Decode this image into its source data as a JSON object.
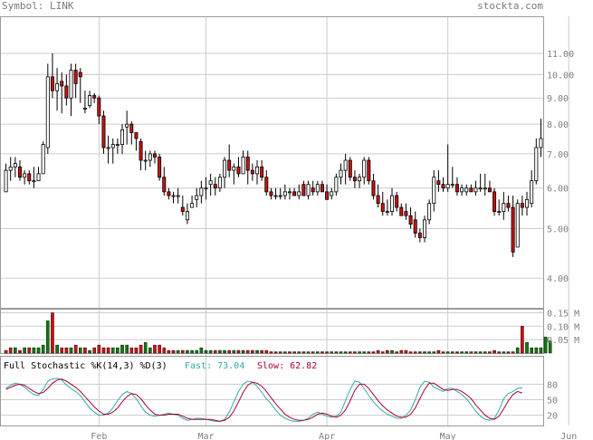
{
  "header": {
    "symbol": "Symbol: LINK",
    "site": "stockta.com"
  },
  "colors": {
    "grid": "#cccccc",
    "frame": "#9a9a9a",
    "up_candle": "#ffffff",
    "down_candle": "#cc1111",
    "wick": "#000000",
    "vol_up": "#117711",
    "vol_down": "#cc1111",
    "fast_line": "#33aaaa",
    "slow_line": "#aa0033",
    "axis_text": "#808080"
  },
  "chart_data": [
    {
      "type": "candlestick",
      "scale": "log",
      "ylim": [
        3.5,
        13.0
      ],
      "y_ticks": [
        4.0,
        5.0,
        6.0,
        7.0,
        8.0,
        9.0,
        10.0,
        11.0
      ],
      "y_tick_labels": [
        "4.00",
        "5.00",
        "6.00",
        "7.00",
        "8.00",
        "9.00",
        "10.00",
        "11.00"
      ],
      "x_month_labels": [
        "Feb",
        "Mar",
        "Apr",
        "May",
        "Jun"
      ],
      "x_month_index": [
        20,
        43,
        69,
        95,
        121
      ],
      "ohlc": [
        [
          5.9,
          6.7,
          5.9,
          6.5
        ],
        [
          6.5,
          6.9,
          6.2,
          6.6
        ],
        [
          6.6,
          6.9,
          6.3,
          6.7
        ],
        [
          6.6,
          6.8,
          6.2,
          6.3
        ],
        [
          6.3,
          6.5,
          6.1,
          6.4
        ],
        [
          6.4,
          6.5,
          6.1,
          6.2
        ],
        [
          6.2,
          6.6,
          6.0,
          6.2
        ],
        [
          6.2,
          6.6,
          6.2,
          6.4
        ],
        [
          6.4,
          7.4,
          6.4,
          7.3
        ],
        [
          7.2,
          10.5,
          7.0,
          9.9
        ],
        [
          9.9,
          11.0,
          9.0,
          9.3
        ],
        [
          9.3,
          10.3,
          8.5,
          9.6
        ],
        [
          9.7,
          10.1,
          8.4,
          9.5
        ],
        [
          9.5,
          10.0,
          8.7,
          9.0
        ],
        [
          9.0,
          10.5,
          8.3,
          10.2
        ],
        [
          10.2,
          10.5,
          9.0,
          9.6
        ],
        [
          10.1,
          10.3,
          8.8,
          9.9
        ],
        [
          8.6,
          9.3,
          8.4,
          8.6
        ],
        [
          8.7,
          9.3,
          8.6,
          9.1
        ],
        [
          9.1,
          9.2,
          8.8,
          9.0
        ],
        [
          9.0,
          9.1,
          8.0,
          8.3
        ],
        [
          8.3,
          8.5,
          7.0,
          7.2
        ],
        [
          7.2,
          7.6,
          6.7,
          7.2
        ],
        [
          7.2,
          7.5,
          6.7,
          7.3
        ],
        [
          7.3,
          7.5,
          7.0,
          7.3
        ],
        [
          7.3,
          8.0,
          7.0,
          7.8
        ],
        [
          7.9,
          8.5,
          7.3,
          8.0
        ],
        [
          8.0,
          8.1,
          7.3,
          7.7
        ],
        [
          7.7,
          7.7,
          7.1,
          7.5
        ],
        [
          7.4,
          7.5,
          6.5,
          6.8
        ],
        [
          6.8,
          7.1,
          6.5,
          6.8
        ],
        [
          6.8,
          7.1,
          6.6,
          7.0
        ],
        [
          7.0,
          7.1,
          6.7,
          6.9
        ],
        [
          6.9,
          7.0,
          6.2,
          6.3
        ],
        [
          6.3,
          6.6,
          5.8,
          5.9
        ],
        [
          5.9,
          6.0,
          5.7,
          5.8
        ],
        [
          5.8,
          5.9,
          5.6,
          5.8
        ],
        [
          5.8,
          6.0,
          5.6,
          5.8
        ],
        [
          5.5,
          5.8,
          5.3,
          5.4
        ],
        [
          5.2,
          5.6,
          5.1,
          5.4
        ],
        [
          5.5,
          5.8,
          5.5,
          5.6
        ],
        [
          5.7,
          6.0,
          5.5,
          5.8
        ],
        [
          5.8,
          6.2,
          5.6,
          6.0
        ],
        [
          6.0,
          6.3,
          5.7,
          6.0
        ],
        [
          6.1,
          6.4,
          5.8,
          6.2
        ],
        [
          6.1,
          6.3,
          5.8,
          6.0
        ],
        [
          6.0,
          6.4,
          5.9,
          6.3
        ],
        [
          6.3,
          6.9,
          6.0,
          6.8
        ],
        [
          6.8,
          7.3,
          6.3,
          6.5
        ],
        [
          6.5,
          6.7,
          6.1,
          6.6
        ],
        [
          6.6,
          6.9,
          6.3,
          6.4
        ],
        [
          6.4,
          7.1,
          6.4,
          6.9
        ],
        [
          6.9,
          7.1,
          6.1,
          6.5
        ],
        [
          6.5,
          6.7,
          6.2,
          6.4
        ],
        [
          6.4,
          6.8,
          6.1,
          6.6
        ],
        [
          6.6,
          6.8,
          6.2,
          6.3
        ],
        [
          6.3,
          6.5,
          5.8,
          5.9
        ],
        [
          5.9,
          6.0,
          5.7,
          5.8
        ],
        [
          5.8,
          6.0,
          5.7,
          5.8
        ],
        [
          5.8,
          6.0,
          5.7,
          5.8
        ],
        [
          5.8,
          6.1,
          5.7,
          5.9
        ],
        [
          5.9,
          6.0,
          5.7,
          5.9
        ],
        [
          5.9,
          6.0,
          5.8,
          5.8
        ],
        [
          5.8,
          6.1,
          5.7,
          5.9
        ],
        [
          6.1,
          6.2,
          5.8,
          5.8
        ],
        [
          5.8,
          6.2,
          5.7,
          6.1
        ],
        [
          6.0,
          6.2,
          5.8,
          5.9
        ],
        [
          5.9,
          6.2,
          5.8,
          6.1
        ],
        [
          6.1,
          6.2,
          5.9,
          5.9
        ],
        [
          5.9,
          6.1,
          5.7,
          5.7
        ],
        [
          5.8,
          6.0,
          5.7,
          5.9
        ],
        [
          5.9,
          6.4,
          5.8,
          6.3
        ],
        [
          6.3,
          6.7,
          6.1,
          6.5
        ],
        [
          6.5,
          7.0,
          6.1,
          6.8
        ],
        [
          6.8,
          6.9,
          6.2,
          6.3
        ],
        [
          6.3,
          6.5,
          6.0,
          6.2
        ],
        [
          6.2,
          6.4,
          6.0,
          6.3
        ],
        [
          6.3,
          6.9,
          6.1,
          6.8
        ],
        [
          6.8,
          6.9,
          6.1,
          6.2
        ],
        [
          6.2,
          6.4,
          5.7,
          5.8
        ],
        [
          5.8,
          6.1,
          5.5,
          5.6
        ],
        [
          5.6,
          5.9,
          5.3,
          5.4
        ],
        [
          5.4,
          5.7,
          5.3,
          5.4
        ],
        [
          5.4,
          6.0,
          5.3,
          5.8
        ],
        [
          5.8,
          5.9,
          5.4,
          5.5
        ],
        [
          5.5,
          5.6,
          5.3,
          5.3
        ],
        [
          5.4,
          5.6,
          5.2,
          5.3
        ],
        [
          5.3,
          5.5,
          5.0,
          5.1
        ],
        [
          5.2,
          5.4,
          4.8,
          4.9
        ],
        [
          4.9,
          5.0,
          4.7,
          4.8
        ],
        [
          4.8,
          5.3,
          4.7,
          5.2
        ],
        [
          5.2,
          5.7,
          5.1,
          5.6
        ],
        [
          5.6,
          6.5,
          5.4,
          6.3
        ],
        [
          6.2,
          6.5,
          5.9,
          6.1
        ],
        [
          6.1,
          6.3,
          5.9,
          6.0
        ],
        [
          6.0,
          7.3,
          5.9,
          6.1
        ],
        [
          6.1,
          6.6,
          6.0,
          6.1
        ],
        [
          6.1,
          6.3,
          5.8,
          5.9
        ],
        [
          5.9,
          6.1,
          5.8,
          6.0
        ],
        [
          5.9,
          6.1,
          5.8,
          6.0
        ],
        [
          6.0,
          6.1,
          5.9,
          5.9
        ],
        [
          5.9,
          6.2,
          5.8,
          6.0
        ],
        [
          6.0,
          6.4,
          5.9,
          6.0
        ],
        [
          6.0,
          6.4,
          5.8,
          6.0
        ],
        [
          6.0,
          6.2,
          5.9,
          5.9
        ],
        [
          5.9,
          6.0,
          5.3,
          5.4
        ],
        [
          5.4,
          5.7,
          5.3,
          5.4
        ],
        [
          5.4,
          5.9,
          5.2,
          5.6
        ],
        [
          5.6,
          5.8,
          5.4,
          5.5
        ],
        [
          5.5,
          5.8,
          4.4,
          4.5
        ],
        [
          4.6,
          5.7,
          4.6,
          5.6
        ],
        [
          5.6,
          5.8,
          5.3,
          5.5
        ],
        [
          5.5,
          5.9,
          5.3,
          5.7
        ],
        [
          5.6,
          6.5,
          5.5,
          6.2
        ],
        [
          6.2,
          7.5,
          6.1,
          7.2
        ],
        [
          7.2,
          8.2,
          6.9,
          7.5
        ]
      ]
    },
    {
      "type": "bar",
      "title": "Volume",
      "y_ticks": [
        0.05,
        0.1,
        0.15
      ],
      "y_tick_labels": [
        "0.05 M",
        "0.10 M",
        "0.15 M"
      ],
      "ylim": [
        0,
        0.165
      ],
      "values": [
        0.01,
        0.02,
        0.02,
        0.01,
        0.02,
        0.02,
        0.02,
        0.02,
        0.03,
        0.12,
        0.15,
        0.03,
        0.02,
        0.02,
        0.02,
        0.03,
        0.02,
        0.02,
        0.01,
        0.02,
        0.03,
        0.02,
        0.02,
        0.02,
        0.02,
        0.03,
        0.03,
        0.02,
        0.02,
        0.03,
        0.04,
        0.02,
        0.03,
        0.03,
        0.02,
        0.01,
        0.01,
        0.01,
        0.01,
        0.01,
        0.01,
        0.01,
        0.02,
        0.01,
        0.01,
        0.01,
        0.01,
        0.01,
        0.01,
        0.01,
        0.01,
        0.01,
        0.01,
        0.01,
        0.01,
        0.01,
        0.01,
        0.005,
        0.005,
        0.005,
        0.005,
        0.005,
        0.005,
        0.005,
        0.005,
        0.005,
        0.005,
        0.005,
        0.005,
        0.005,
        0.005,
        0.005,
        0.005,
        0.005,
        0.005,
        0.005,
        0.005,
        0.005,
        0.005,
        0.005,
        0.01,
        0.005,
        0.01,
        0.01,
        0.005,
        0.01,
        0.01,
        0.005,
        0.005,
        0.005,
        0.005,
        0.005,
        0.005,
        0.01,
        0.005,
        0.005,
        0.005,
        0.005,
        0.005,
        0.005,
        0.005,
        0.005,
        0.005,
        0.005,
        0.005,
        0.01,
        0.005,
        0.005,
        0.005,
        0.005,
        0.02,
        0.1,
        0.04,
        0.02,
        0.02,
        0.02,
        0.06,
        0.045
      ],
      "direction": [
        "down",
        "down",
        "up",
        "down",
        "up",
        "down",
        "up",
        "up",
        "up",
        "up",
        "down",
        "up",
        "down",
        "down",
        "up",
        "down",
        "up",
        "down",
        "up",
        "down",
        "down",
        "down",
        "down",
        "up",
        "up",
        "up",
        "up",
        "down",
        "down",
        "down",
        "up",
        "up",
        "down",
        "down",
        "down",
        "down",
        "down",
        "up",
        "down",
        "up",
        "up",
        "up",
        "up",
        "up",
        "up",
        "down",
        "up",
        "up",
        "down",
        "up",
        "down",
        "up",
        "down",
        "down",
        "up",
        "down",
        "down",
        "down",
        "down",
        "down",
        "up",
        "down",
        "down",
        "up",
        "down",
        "up",
        "down",
        "up",
        "down",
        "down",
        "up",
        "up",
        "up",
        "up",
        "down",
        "down",
        "up",
        "up",
        "down",
        "down",
        "down",
        "down",
        "down",
        "up",
        "down",
        "down",
        "down",
        "down",
        "down",
        "down",
        "up",
        "up",
        "up",
        "down",
        "down",
        "up",
        "up",
        "down",
        "up",
        "up",
        "down",
        "up",
        "up",
        "up",
        "down",
        "down",
        "down",
        "up",
        "down",
        "down",
        "up",
        "down",
        "up",
        "up",
        "up",
        "up",
        "up",
        "up"
      ]
    },
    {
      "type": "line",
      "title": "Full Stochastic %K(14,3) %D(3)",
      "y_ticks": [
        20,
        50,
        80
      ],
      "y_tick_labels": [
        "20",
        "50",
        "80"
      ],
      "ylim": [
        0,
        100
      ],
      "series": [
        {
          "name": "Fast",
          "value_label": "Fast: 73.04",
          "values": [
            72,
            78,
            82,
            80,
            74,
            66,
            60,
            58,
            70,
            86,
            90,
            92,
            88,
            78,
            72,
            66,
            58,
            46,
            34,
            26,
            20,
            20,
            24,
            34,
            48,
            60,
            66,
            62,
            52,
            38,
            26,
            20,
            18,
            20,
            22,
            24,
            22,
            20,
            14,
            10,
            12,
            14,
            14,
            12,
            10,
            8,
            8,
            12,
            26,
            46,
            66,
            80,
            86,
            84,
            76,
            64,
            52,
            42,
            30,
            20,
            14,
            10,
            8,
            8,
            10,
            14,
            22,
            26,
            22,
            18,
            16,
            18,
            26,
            48,
            70,
            86,
            84,
            72,
            58,
            46,
            36,
            28,
            22,
            18,
            14,
            14,
            20,
            30,
            50,
            74,
            86,
            84,
            74,
            70,
            66,
            72,
            72,
            66,
            60,
            52,
            40,
            28,
            18,
            12,
            10,
            14,
            30,
            52,
            62,
            66,
            72,
            73
          ]
        },
        {
          "name": "Slow",
          "value_label": "Slow: 62.82",
          "values": [
            70,
            74,
            78,
            80,
            78,
            72,
            66,
            62,
            64,
            72,
            82,
            88,
            90,
            86,
            80,
            74,
            66,
            56,
            46,
            36,
            28,
            22,
            22,
            26,
            34,
            46,
            56,
            62,
            60,
            52,
            40,
            30,
            22,
            20,
            20,
            22,
            22,
            22,
            18,
            14,
            12,
            12,
            12,
            12,
            12,
            10,
            8,
            10,
            16,
            28,
            46,
            64,
            78,
            84,
            82,
            76,
            66,
            54,
            42,
            32,
            22,
            16,
            12,
            10,
            10,
            12,
            16,
            22,
            24,
            22,
            18,
            16,
            20,
            30,
            48,
            68,
            80,
            80,
            72,
            60,
            48,
            38,
            30,
            24,
            18,
            16,
            16,
            22,
            34,
            52,
            70,
            82,
            82,
            76,
            70,
            68,
            70,
            70,
            66,
            60,
            52,
            40,
            30,
            20,
            14,
            12,
            18,
            32,
            48,
            60,
            66,
            63
          ]
        }
      ]
    }
  ]
}
